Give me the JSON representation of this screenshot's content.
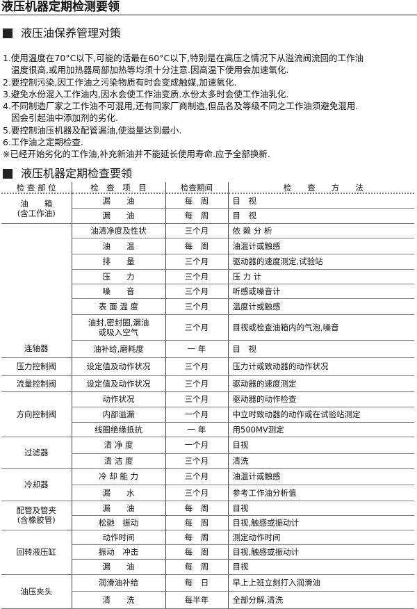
{
  "page_title": "液压机器定期检测要领",
  "section1": {
    "heading": "液压油保养管理对策",
    "lines": [
      "1.使用温度在70°C以下,可能的话最在60°C以下,特别是在高压之情况下从溢流阀流回的工作油",
      "温度很高,或用加热器局部加热等均须十分注意.因高温下使用会加速氧化.",
      "2.要控制污染,因工作油之污染物质有时会变成触媒,加速氧化.",
      "3.避免水份混入工作油内,因水会使工作油变质.水份太多时会使工作油乳化.",
      "4.不同制造厂家之工作油不可混用,还有同家厂商制造,但品名及等级不同之工作油须避免混用.",
      "因会引起油中添加剂的劣化.",
      "5.要控制油压机器及配管漏油,使溢量达到最小.",
      "6.工作油之定期检查.",
      "※已经开始劣化的工作油,补充新油并不能延长使用寿命.应予全部换新."
    ]
  },
  "section2": {
    "heading": "液压机器定期检查要领",
    "headers": [
      "检 查 部 位",
      "检　查　项　目",
      "检查期间",
      "检　　查　　方　　法"
    ],
    "groups": [
      {
        "part": "油　　箱\n(含工作油)",
        "items": [
          [
            "漏　　油",
            "每　周",
            "目　视"
          ],
          [
            "漏　　油",
            "每　周",
            "目　视"
          ]
        ]
      },
      {
        "part": "",
        "items": [
          [
            "油清净度及性状",
            "三个月",
            "依 赖 分 析"
          ],
          [
            "油　　温",
            "每　周",
            "油温计或触感"
          ],
          [
            "排　　量",
            "三个月",
            "驱动器的速度测定,试验站"
          ],
          [
            "压　　力",
            "三个月",
            "压 力 计"
          ],
          [
            "噪　　音",
            "三个月",
            "听感或噪音计"
          ],
          [
            "表 面 温 度",
            "三个月",
            "温度计或触感"
          ],
          [
            "油封,密封圈,漏油\n或吸入空气",
            "三个月",
            "目视或检查油箱内的气泡,噪音"
          ]
        ]
      },
      {
        "part": "连轴器",
        "items": [
          [
            "油补给,磨耗度",
            "一 年",
            "目　视"
          ]
        ]
      },
      {
        "part": "压力控制阀",
        "items": [
          [
            "设定值及动作状况",
            "三个月",
            "压力计或致动器的动作状况"
          ]
        ]
      },
      {
        "part": "流量控制阀",
        "items": [
          [
            "设定值及动作状况",
            "三个月",
            "驱动器的速度测定"
          ]
        ]
      },
      {
        "part": "方向控制阀",
        "items": [
          [
            "动作状况",
            "三个月",
            "驱动器的动作检查"
          ],
          [
            "内部溢漏",
            "一个月",
            "中立时致动器的动作或在试验站测定"
          ],
          [
            "线圈绝缘抵抗",
            "一 年",
            "用500MV测定"
          ]
        ]
      },
      {
        "part": "过滤器",
        "items": [
          [
            "清 净 度",
            "一个月",
            "目视"
          ],
          [
            "清 洁 度",
            "三个月",
            "清洗"
          ]
        ]
      },
      {
        "part": "冷却器",
        "items": [
          [
            "冷 却 能 力",
            "三个月",
            "油温计或触感"
          ],
          [
            "漏　　水",
            "三个月",
            "参考工作油分析值"
          ]
        ]
      },
      {
        "part": "配管及管夹\n(含橡胶管)",
        "items": [
          [
            "漏　　油",
            "每　周",
            "目视"
          ],
          [
            "松驰　振动",
            "每　周",
            "目视,触感或振动计"
          ]
        ]
      },
      {
        "part": "回转液压缸",
        "items": [
          [
            "动作时间",
            "每　周",
            "测定动作时间"
          ],
          [
            "振动　冲击",
            "每　周",
            "目视,触感或振动计"
          ],
          [
            "漏　　油",
            "每　周",
            "目视"
          ]
        ]
      },
      {
        "part": "油压夹头",
        "items": [
          [
            "润滑油补给",
            "每　日",
            "早上上班立刻打入润滑油"
          ],
          [
            "清　　洗",
            "每半年",
            "全部分解,清洗"
          ]
        ]
      }
    ]
  }
}
